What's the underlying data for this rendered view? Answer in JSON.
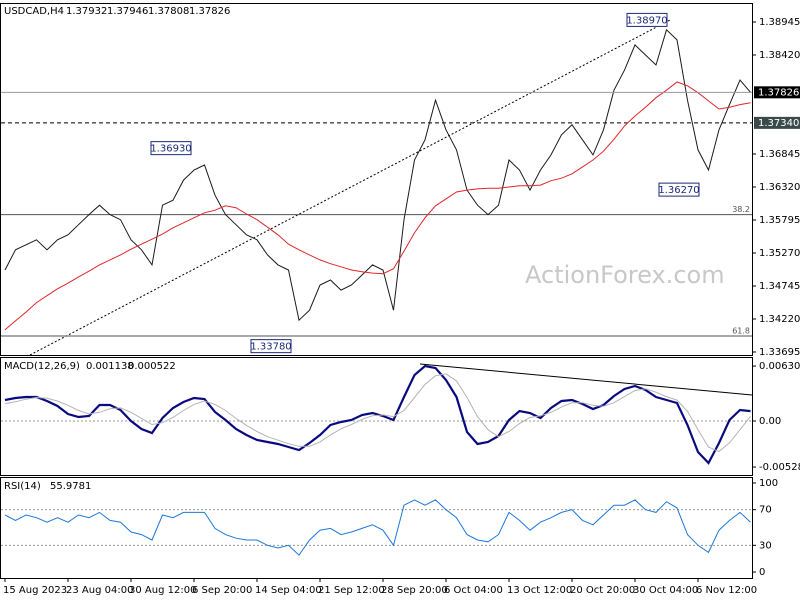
{
  "chart_data": [
    {
      "type": "line",
      "header": {
        "symbol": "USDCAD,H4",
        "open": 1.37932,
        "high": 1.37946,
        "low": 1.37808,
        "close": 1.37826
      },
      "categories": [
        "15 Aug 2023",
        null,
        null,
        null,
        null,
        null,
        "23 Aug 04:00",
        null,
        null,
        null,
        null,
        null,
        "30 Aug 12:00",
        null,
        null,
        null,
        null,
        null,
        "6 Sep 20:00",
        null,
        null,
        null,
        null,
        null,
        "14 Sep 04:00",
        null,
        null,
        null,
        null,
        null,
        "21 Sep 12:00",
        null,
        null,
        null,
        null,
        null,
        "28 Sep 20:00",
        null,
        null,
        null,
        null,
        null,
        "6 Oct 04:00",
        null,
        null,
        null,
        null,
        null,
        "13 Oct 12:00",
        null,
        null,
        null,
        null,
        null,
        "20 Oct 20:00",
        null,
        null,
        null,
        null,
        null,
        "30 Oct 04:00",
        null,
        null,
        null,
        null,
        null,
        "6 Nov 12:00",
        null,
        null,
        null,
        null,
        null
      ],
      "series": [
        {
          "color": "#1a1a1a",
          "values": [
            1.35,
            1.3532,
            1.354,
            1.3548,
            1.3532,
            1.3548,
            1.3556,
            1.3572,
            1.3588,
            1.3603,
            1.3588,
            1.358,
            1.3548,
            1.3532,
            1.3508,
            1.3603,
            1.3611,
            1.3643,
            1.3659,
            1.3667,
            1.3619,
            1.3588,
            1.3572,
            1.3556,
            1.3548,
            1.3524,
            1.3508,
            1.35,
            1.342,
            1.3436,
            1.3476,
            1.3484,
            1.3468,
            1.3476,
            1.3492,
            1.3508,
            1.35,
            1.3436,
            1.358,
            1.3675,
            1.3707,
            1.377,
            1.3723,
            1.3691,
            1.3627,
            1.3603,
            1.3588,
            1.3603,
            1.3675,
            1.3659,
            1.3627,
            1.3659,
            1.3683,
            1.3715,
            1.3731,
            1.3707,
            1.3683,
            1.3723,
            1.3786,
            1.3818,
            1.3858,
            1.3842,
            1.3826,
            1.3882,
            1.3866,
            1.377,
            1.3691,
            1.3659,
            1.3723,
            1.3763,
            1.3802,
            1.37826
          ]
        },
        {
          "color": "#e0262a",
          "values": [
            1.3405,
            1.3419,
            1.3433,
            1.3448,
            1.3459,
            1.347,
            1.3479,
            1.3489,
            1.3498,
            1.3508,
            1.3516,
            1.3524,
            1.3533,
            1.3541,
            1.3549,
            1.3557,
            1.3567,
            1.3575,
            1.3583,
            1.3591,
            1.3595,
            1.3602,
            1.3599,
            1.3589,
            1.358,
            1.3568,
            1.3556,
            1.3541,
            1.3532,
            1.3524,
            1.3516,
            1.351,
            1.3505,
            1.35,
            1.3497,
            1.3495,
            1.3494,
            1.3502,
            1.353,
            1.3559,
            1.3583,
            1.3602,
            1.3613,
            1.3624,
            1.3627,
            1.3629,
            1.363,
            1.363,
            1.3632,
            1.3634,
            1.3634,
            1.3635,
            1.3642,
            1.3646,
            1.3653,
            1.3664,
            1.3675,
            1.3689,
            1.3708,
            1.3729,
            1.3745,
            1.3759,
            1.3774,
            1.3786,
            1.3799,
            1.3793,
            1.3782,
            1.3769,
            1.3756,
            1.3759,
            1.3763,
            1.3766
          ]
        }
      ],
      "ylim": [
        1.33647,
        1.39247
      ],
      "yticks": [
        {
          "value": 1.38945,
          "label": "1.38945"
        },
        {
          "value": 1.3842,
          "label": "1.38420"
        },
        {
          "value": 1.36845,
          "label": "1.36845"
        },
        {
          "value": 1.3632,
          "label": "1.36320"
        },
        {
          "value": 1.35795,
          "label": "1.35795"
        },
        {
          "value": 1.3527,
          "label": "1.35270"
        },
        {
          "value": 1.34745,
          "label": "1.34745"
        },
        {
          "value": 1.3422,
          "label": "1.34220"
        },
        {
          "value": 1.33695,
          "label": "1.33695"
        }
      ],
      "levels": [
        {
          "value": 1.3734,
          "label": "1.37340"
        }
      ],
      "fib_levels": [
        {
          "price": 1.3588,
          "level": 38.2
        },
        {
          "price": 1.3395,
          "level": 61.8
        }
      ],
      "annotations": [
        {
          "value": 1.3693,
          "label": "1.36930"
        },
        {
          "value": 1.3378,
          "label": "1.33780"
        },
        {
          "value": 1.3897,
          "label": "1.38970"
        },
        {
          "value": 1.3627,
          "label": "1.36270"
        }
      ],
      "watermark": "ActionForex.com"
    },
    {
      "type": "line",
      "title": "MACD(12,26,9)",
      "series": [
        {
          "color": "#0a0a80",
          "values": [
            0.00241,
            0.00264,
            0.00275,
            0.00275,
            0.00229,
            0.00172,
            0.0008,
            0.00046,
            0.00057,
            0.00184,
            0.00184,
            0.00126,
            0.0,
            -0.00092,
            -0.00138,
            0.00034,
            0.00149,
            0.00218,
            0.00264,
            0.00252,
            0.00103,
            0.00011,
            -0.00092,
            -0.00161,
            -0.00218,
            -0.00241,
            -0.00264,
            -0.00298,
            -0.00333,
            -0.00252,
            -0.00161,
            -0.00046,
            -0.00011,
            0.00011,
            0.00069,
            0.00092,
            0.00057,
            0.00011,
            0.00275,
            0.00528,
            0.00631,
            0.00608,
            0.0047,
            0.00275,
            -0.00126,
            -0.00264,
            -0.00241,
            -0.00172,
            0.00011,
            0.00115,
            0.00092,
            0.00034,
            0.00149,
            0.00229,
            0.00241,
            0.00195,
            0.00138,
            0.00184,
            0.00287,
            0.00367,
            0.00402,
            0.00356,
            0.00275,
            0.00241,
            0.00207,
            -0.00046,
            -0.00356,
            -0.00482,
            -0.00252,
            0.00011,
            0.00126,
            0.001138
          ]
        },
        {
          "color": "#b4b4b4",
          "values": [
            0.002,
            0.0022,
            0.0025,
            0.0027,
            0.0026,
            0.0023,
            0.0018,
            0.0012,
            0.0008,
            0.001,
            0.0014,
            0.0015,
            0.001,
            0.0003,
            -0.0004,
            -0.0002,
            0.0004,
            0.0012,
            0.0019,
            0.0023,
            0.0019,
            0.0012,
            0.0003,
            -0.0005,
            -0.0012,
            -0.0018,
            -0.0022,
            -0.0026,
            -0.0029,
            -0.0029,
            -0.0024,
            -0.0016,
            -0.0009,
            -0.0004,
            0.0002,
            0.0006,
            0.0007,
            0.0005,
            0.0012,
            0.0027,
            0.0042,
            0.0052,
            0.0054,
            0.0046,
            0.0027,
            0.0005,
            -0.001,
            -0.0018,
            -0.0012,
            -0.0003,
            0.0004,
            0.0006,
            0.001,
            0.0016,
            0.0021,
            0.0021,
            0.0018,
            0.0017,
            0.0021,
            0.0028,
            0.0035,
            0.0037,
            0.0033,
            0.0028,
            0.0024,
            0.0011,
            -0.001,
            -0.003,
            -0.0035,
            -0.0025,
            -0.001,
            0.000522
          ]
        }
      ],
      "ylim": [
        -0.006196,
        0.007343
      ],
      "yticks": [
        0.006305,
        {
          "value": 0,
          "label": "0.00"
        },
        -0.005283
      ]
    },
    {
      "type": "line",
      "title": "RSI(14)",
      "series": [
        {
          "color": "#1e78d7",
          "values": [
            64,
            58,
            64,
            61,
            56,
            61,
            56,
            64,
            61,
            67,
            58,
            56,
            45,
            42,
            36,
            64,
            61,
            67,
            67,
            67,
            49,
            42,
            38,
            36,
            36,
            30,
            27,
            30,
            19,
            36,
            47,
            49,
            42,
            45,
            49,
            53,
            47,
            30,
            75,
            81,
            75,
            81,
            70,
            61,
            42,
            36,
            34,
            42,
            67,
            58,
            47,
            56,
            61,
            67,
            70,
            58,
            53,
            64,
            75,
            75,
            81,
            70,
            67,
            79,
            72,
            42,
            30,
            22,
            47,
            58,
            67,
            55.9781
          ]
        }
      ],
      "ylim": [
        -6.7,
        106.7
      ],
      "yticks": [
        100,
        70,
        30,
        0
      ],
      "levels": [
        70,
        30
      ]
    }
  ]
}
